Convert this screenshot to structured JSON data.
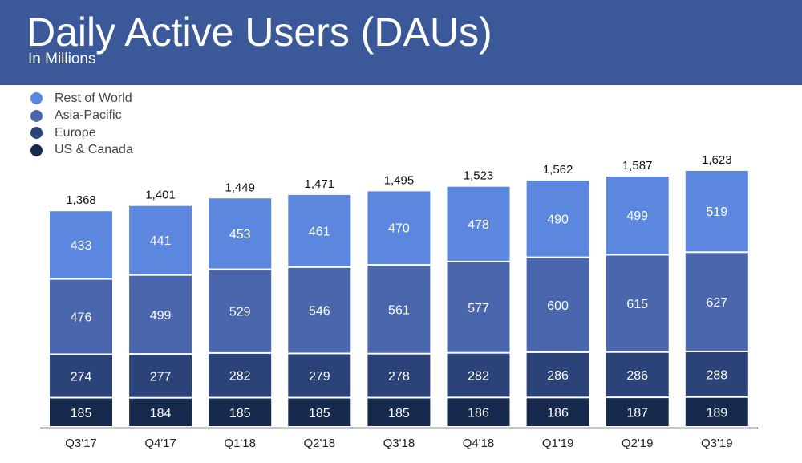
{
  "header": {
    "title": "Daily Active Users (DAUs)",
    "subtitle": "In Millions"
  },
  "chart_data": {
    "type": "bar",
    "stacked": true,
    "title": "Daily Active Users (DAUs)",
    "subtitle": "In Millions",
    "xlabel": "",
    "ylabel": "",
    "ylim": [
      0,
      1700
    ],
    "grid": false,
    "legend_position": "top-left",
    "categories": [
      "Q3'17",
      "Q4'17",
      "Q1'18",
      "Q2'18",
      "Q3'18",
      "Q4'18",
      "Q1'19",
      "Q2'19",
      "Q3'19"
    ],
    "series": [
      {
        "name": "US & Canada",
        "color": "#172a4e",
        "values": [
          185,
          184,
          185,
          185,
          185,
          186,
          186,
          187,
          189
        ]
      },
      {
        "name": "Europe",
        "color": "#2b4379",
        "values": [
          274,
          277,
          282,
          279,
          278,
          282,
          286,
          286,
          288
        ]
      },
      {
        "name": "Asia-Pacific",
        "color": "#4a67ad",
        "values": [
          476,
          499,
          529,
          546,
          561,
          577,
          600,
          615,
          627
        ]
      },
      {
        "name": "Rest of World",
        "color": "#5b87de",
        "values": [
          433,
          441,
          453,
          461,
          470,
          478,
          490,
          499,
          519
        ]
      }
    ],
    "totals": [
      "1,368",
      "1,401",
      "1,449",
      "1,471",
      "1,495",
      "1,523",
      "1,562",
      "1,587",
      "1,623"
    ],
    "legend": [
      "Rest of World",
      "Asia-Pacific",
      "Europe",
      "US & Canada"
    ]
  },
  "legend_items": [
    {
      "label": "Rest of World",
      "color": "#5b87de"
    },
    {
      "label": "Asia-Pacific",
      "color": "#4a67ad"
    },
    {
      "label": "Europe",
      "color": "#2b4379"
    },
    {
      "label": "US & Canada",
      "color": "#172a4e"
    }
  ]
}
